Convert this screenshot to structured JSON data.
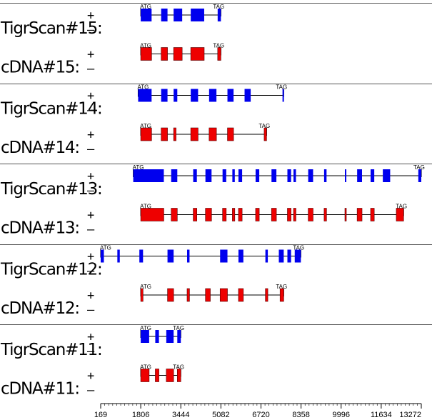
{
  "strand_symbols": {
    "plus": "+",
    "minus": "–"
  },
  "colors": {
    "predicted": "#0000ee",
    "cdna": "#ee0000",
    "line": "#000000",
    "separator": "#555555"
  },
  "chart_data": {
    "type": "gene-structure",
    "x_axis": {
      "min": 169,
      "max": 13272,
      "ticks": [
        169,
        1806,
        3444,
        5082,
        6720,
        8358,
        9996,
        11634,
        13272
      ]
    },
    "groups": [
      {
        "tracks": [
          {
            "label": "TigrScan#15:",
            "type": "predicted",
            "strand": "+",
            "start": 1806,
            "end": 5082,
            "start_codon": "ATG",
            "end_codon": "TAG",
            "exons": [
              [
                1806,
                2250
              ],
              [
                2640,
                2900
              ],
              [
                3150,
                3500
              ],
              [
                3850,
                4400
              ],
              [
                4950,
                5082
              ]
            ]
          },
          {
            "label": "cDNA#15:",
            "type": "cdna",
            "strand": "+",
            "start": 1806,
            "end": 5082,
            "start_codon": "ATG",
            "end_codon": "TAG",
            "exons": [
              [
                1806,
                2250
              ],
              [
                2640,
                2900
              ],
              [
                3150,
                3500
              ],
              [
                3850,
                4400
              ],
              [
                4950,
                5082
              ]
            ]
          }
        ]
      },
      {
        "tracks": [
          {
            "label": "TigrScan#14:",
            "type": "predicted",
            "strand": "+",
            "start": 1700,
            "end": 7650,
            "start_codon": "ATG",
            "end_codon": "TAG",
            "exons": [
              [
                1700,
                2250
              ],
              [
                2640,
                2900
              ],
              [
                3150,
                3300
              ],
              [
                3850,
                4150
              ],
              [
                4600,
                4900
              ],
              [
                5350,
                5600
              ],
              [
                6050,
                6300
              ],
              [
                7600,
                7650
              ]
            ]
          },
          {
            "label": "cDNA#14:",
            "type": "cdna",
            "strand": "+",
            "start": 1806,
            "end": 6950,
            "start_codon": "ATG",
            "end_codon": "TAG",
            "exons": [
              [
                1806,
                2250
              ],
              [
                2640,
                2900
              ],
              [
                3150,
                3250
              ],
              [
                3850,
                4150
              ],
              [
                4600,
                4900
              ],
              [
                5350,
                5600
              ],
              [
                6850,
                6950
              ]
            ]
          }
        ]
      },
      {
        "tracks": [
          {
            "label": "TigrScan#13:",
            "type": "predicted",
            "strand": "+",
            "start": 1500,
            "end": 13272,
            "start_codon": "ATG",
            "end_codon": "TAG",
            "exons": [
              [
                1500,
                2750
              ],
              [
                3050,
                3300
              ],
              [
                3950,
                4100
              ],
              [
                4450,
                4700
              ],
              [
                5150,
                5300
              ],
              [
                5550,
                5650
              ],
              [
                5800,
                5950
              ],
              [
                6500,
                6650
              ],
              [
                7150,
                7350
              ],
              [
                7800,
                7950
              ],
              [
                8050,
                8150
              ],
              [
                8650,
                8850
              ],
              [
                9300,
                9400
              ],
              [
                10150,
                10200
              ],
              [
                10650,
                10850
              ],
              [
                11200,
                11350
              ],
              [
                11700,
                12000
              ],
              [
                13150,
                13272
              ]
            ]
          },
          {
            "label": "cDNA#13:",
            "type": "cdna",
            "strand": "+",
            "start": 1806,
            "end": 12550,
            "start_codon": "ATG",
            "end_codon": "TAG",
            "exons": [
              [
                1806,
                2750
              ],
              [
                3050,
                3300
              ],
              [
                3950,
                4100
              ],
              [
                4450,
                4700
              ],
              [
                5150,
                5300
              ],
              [
                5550,
                5650
              ],
              [
                5800,
                5950
              ],
              [
                6500,
                6650
              ],
              [
                7150,
                7350
              ],
              [
                7800,
                7950
              ],
              [
                8050,
                8150
              ],
              [
                8650,
                8850
              ],
              [
                9300,
                9400
              ],
              [
                10150,
                10200
              ],
              [
                10650,
                10850
              ],
              [
                11200,
                11350
              ],
              [
                12250,
                12550
              ]
            ]
          }
        ]
      },
      {
        "tracks": [
          {
            "label": "TigrScan#12:",
            "type": "predicted",
            "strand": "-",
            "start": 169,
            "end": 8350,
            "start_codon": "ATG",
            "end_codon": "TAG",
            "exons": [
              [
                169,
                300
              ],
              [
                850,
                950
              ],
              [
                1750,
                1900
              ],
              [
                2900,
                3150
              ],
              [
                3700,
                3800
              ],
              [
                5050,
                5350
              ],
              [
                5800,
                6000
              ],
              [
                6900,
                7000
              ],
              [
                7450,
                7650
              ],
              [
                7800,
                7950
              ],
              [
                8100,
                8350
              ]
            ]
          },
          {
            "label": "cDNA#12:",
            "type": "cdna",
            "strand": "-",
            "start": 1806,
            "end": 7650,
            "start_codon": "ATG",
            "end_codon": "TAG",
            "exons": [
              [
                1806,
                1900
              ],
              [
                2900,
                3150
              ],
              [
                3700,
                3800
              ],
              [
                4450,
                4650
              ],
              [
                5050,
                5350
              ],
              [
                5800,
                6000
              ],
              [
                6900,
                7000
              ],
              [
                7500,
                7650
              ]
            ]
          }
        ]
      },
      {
        "tracks": [
          {
            "label": "TigrScan#11:",
            "type": "predicted",
            "strand": "+",
            "start": 1806,
            "end": 3444,
            "start_codon": "ATG",
            "end_codon": "TAG",
            "exons": [
              [
                1806,
                2150
              ],
              [
                2400,
                2550
              ],
              [
                2850,
                3150
              ],
              [
                3300,
                3444
              ]
            ]
          },
          {
            "label": "cDNA#11:",
            "type": "cdna",
            "strand": "+",
            "start": 1806,
            "end": 3444,
            "start_codon": "ATG",
            "end_codon": "TAG",
            "exons": [
              [
                1806,
                2150
              ],
              [
                2400,
                2550
              ],
              [
                2850,
                3150
              ],
              [
                3300,
                3444
              ]
            ]
          }
        ]
      }
    ]
  }
}
